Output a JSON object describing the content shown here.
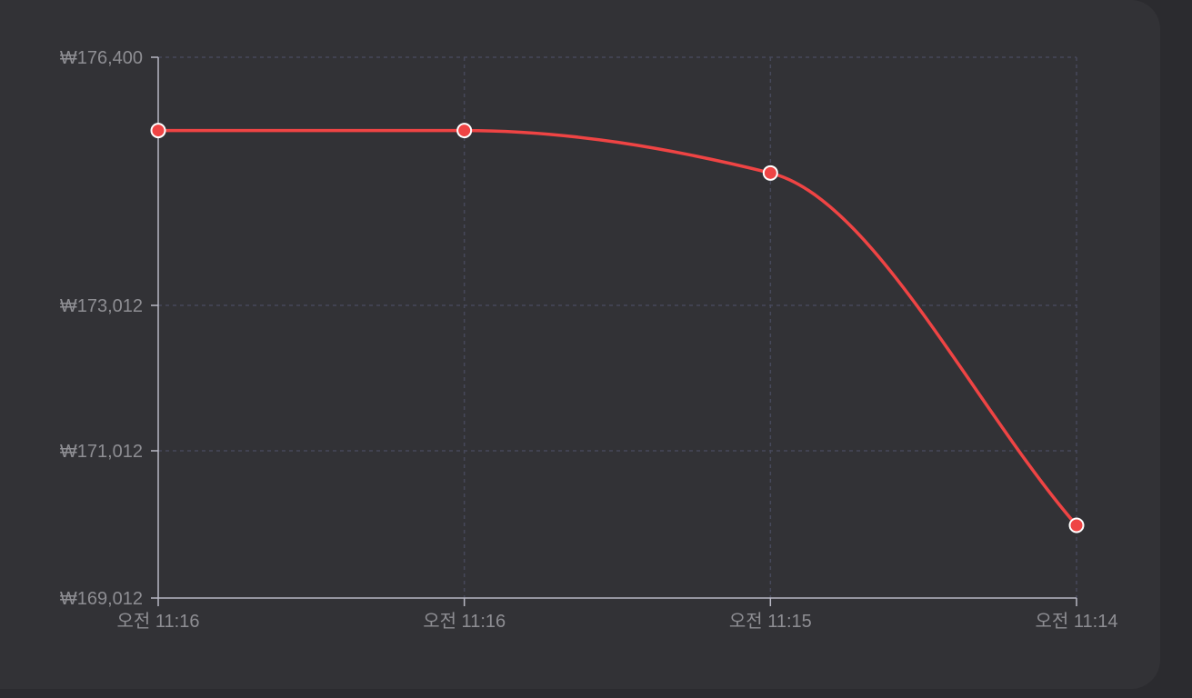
{
  "colors": {
    "background": "#2b2b2f",
    "card": "#323236",
    "line": "#ef4444",
    "axis": "#b8b8c4",
    "grid": "#46485a",
    "tick_text": "#8e8e93",
    "point_stroke": "#ffffff"
  },
  "chart_data": {
    "type": "line",
    "categories": [
      "오전 11:16",
      "오전 11:16",
      "오전 11:15",
      "오전 11:14"
    ],
    "series": [
      {
        "values": [
          175400,
          175400,
          174820,
          170000
        ]
      }
    ],
    "y_ticks": [
      169012,
      171012,
      173012,
      176400
    ],
    "y_tick_labels": [
      "₩169,012",
      "₩171,012",
      "₩173,012",
      "₩176,400"
    ],
    "ylim": [
      169012,
      176400
    ],
    "xlabel": "",
    "ylabel": "",
    "title": "",
    "grid": true,
    "curve": "smooth"
  }
}
